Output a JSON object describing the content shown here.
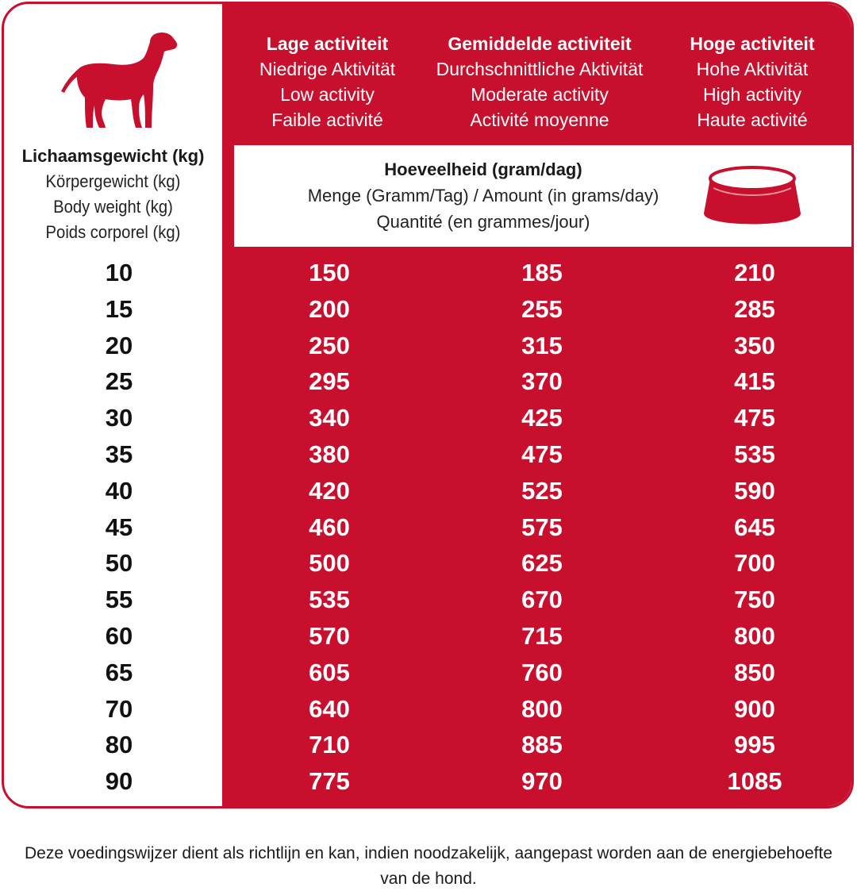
{
  "colors": {
    "brand_red": "#c8102e",
    "white": "#ffffff"
  },
  "weight_header": {
    "nl": "Lichaamsgewicht (kg)",
    "de": "Körpergewicht (kg)",
    "en": "Body weight (kg)",
    "fr": "Poids corporel (kg)"
  },
  "activities": [
    {
      "nl": "Lage activiteit",
      "de": "Niedrige Aktivität",
      "en": "Low activity",
      "fr": "Faible activité"
    },
    {
      "nl": "Gemiddelde activiteit",
      "de": "Durchschnittliche Aktivität",
      "en": "Moderate activity",
      "fr": "Activité moyenne"
    },
    {
      "nl": "Hoge activiteit",
      "de": "Hohe Aktivität",
      "en": "High activity",
      "fr": "Haute activité"
    }
  ],
  "quantity_header": {
    "nl": "Hoeveelheid (gram/dag)",
    "de_en": "Menge (Gramm/Tag) / Amount (in grams/day)",
    "fr": "Quantité (en grammes/jour)"
  },
  "icons": {
    "dog": "dog-icon",
    "bowl": "bowl-icon"
  },
  "rows": [
    {
      "weight": "10",
      "low": "150",
      "moderate": "185",
      "high": "210"
    },
    {
      "weight": "15",
      "low": "200",
      "moderate": "255",
      "high": "285"
    },
    {
      "weight": "20",
      "low": "250",
      "moderate": "315",
      "high": "350"
    },
    {
      "weight": "25",
      "low": "295",
      "moderate": "370",
      "high": "415"
    },
    {
      "weight": "30",
      "low": "340",
      "moderate": "425",
      "high": "475"
    },
    {
      "weight": "35",
      "low": "380",
      "moderate": "475",
      "high": "535"
    },
    {
      "weight": "40",
      "low": "420",
      "moderate": "525",
      "high": "590"
    },
    {
      "weight": "45",
      "low": "460",
      "moderate": "575",
      "high": "645"
    },
    {
      "weight": "50",
      "low": "500",
      "moderate": "625",
      "high": "700"
    },
    {
      "weight": "55",
      "low": "535",
      "moderate": "670",
      "high": "750"
    },
    {
      "weight": "60",
      "low": "570",
      "moderate": "715",
      "high": "800"
    },
    {
      "weight": "65",
      "low": "605",
      "moderate": "760",
      "high": "850"
    },
    {
      "weight": "70",
      "low": "640",
      "moderate": "800",
      "high": "900"
    },
    {
      "weight": "80",
      "low": "710",
      "moderate": "885",
      "high": "995"
    },
    {
      "weight": "90",
      "low": "775",
      "moderate": "970",
      "high": "1085"
    }
  ],
  "footnote": "Deze voedingswijzer dient als richtlijn en kan, indien noodzakelijk, aangepast worden aan de energiebehoefte van de hond."
}
